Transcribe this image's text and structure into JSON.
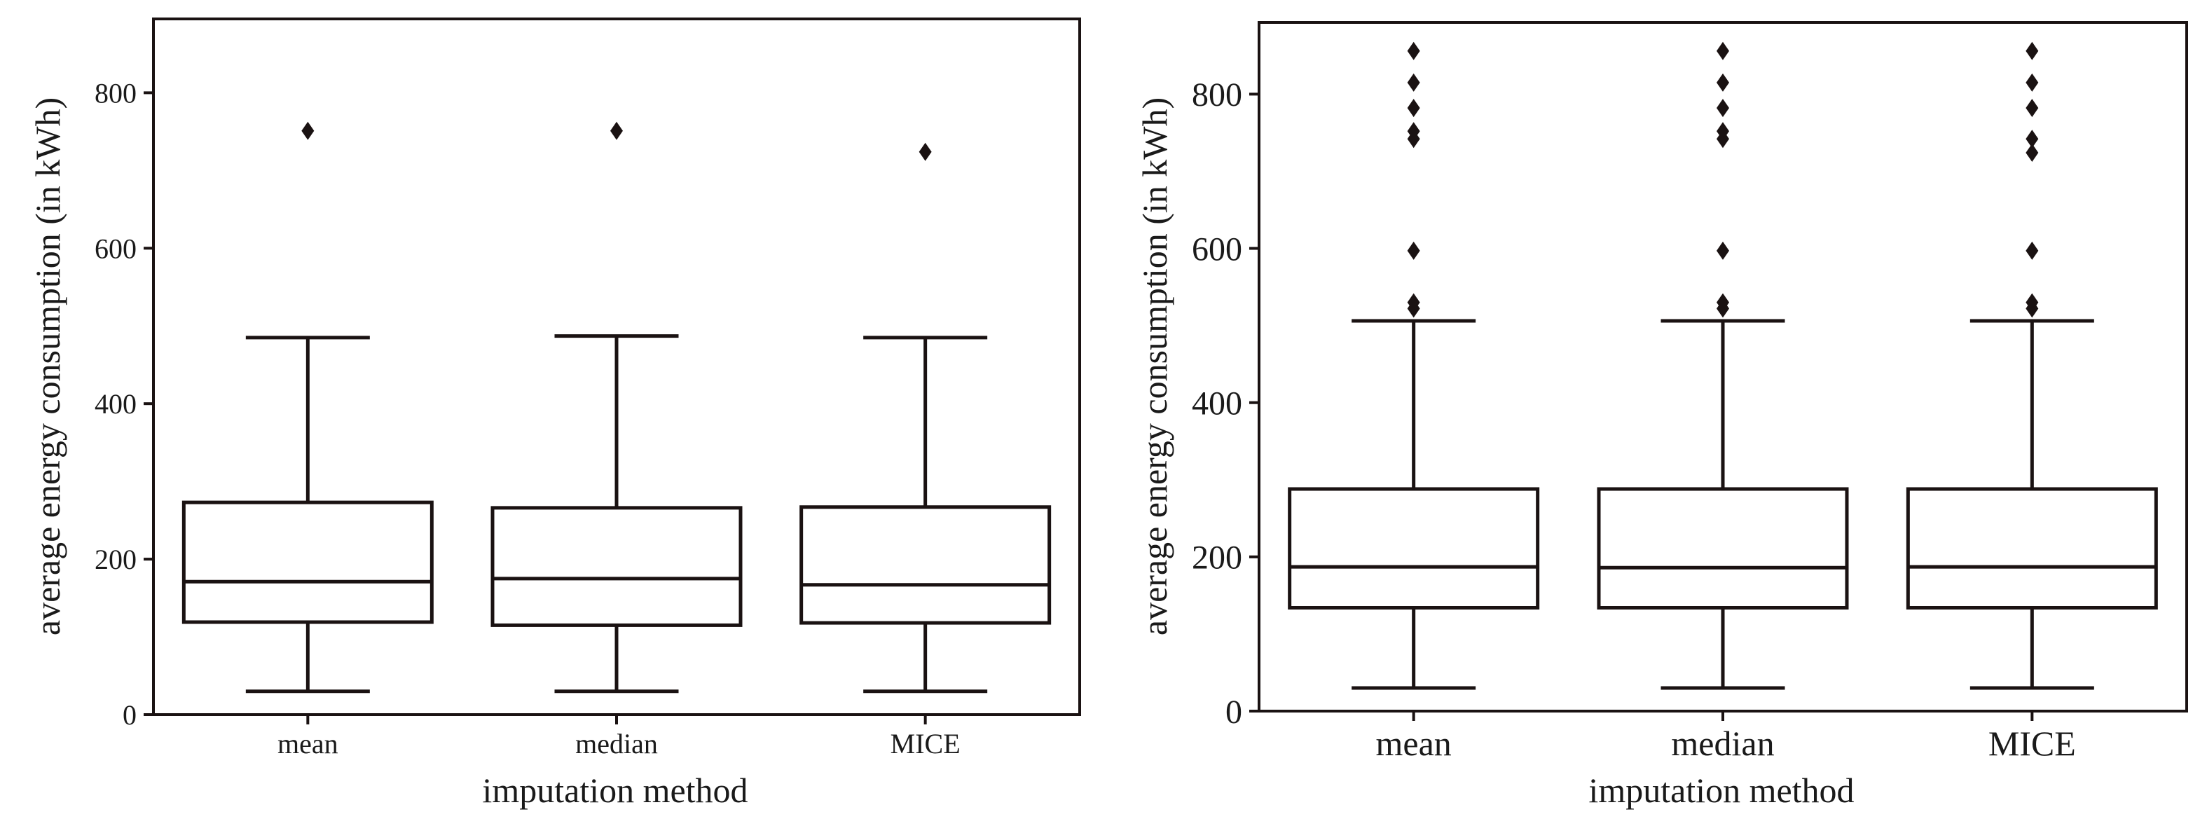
{
  "chart_data": [
    {
      "type": "box",
      "title": "",
      "xlabel": "imputation method",
      "ylabel": "average energy consumption (in kWh)",
      "ylim": [
        0,
        895
      ],
      "yticks": [
        0,
        200,
        400,
        600,
        800
      ],
      "categories": [
        "mean",
        "median",
        "MICE"
      ],
      "boxes": [
        {
          "name": "mean",
          "whisker_low": 30,
          "q1": 119,
          "median": 171,
          "q3": 273,
          "whisker_high": 485,
          "outliers": [
            751
          ]
        },
        {
          "name": "median",
          "whisker_low": 30,
          "q1": 115,
          "median": 175,
          "q3": 266,
          "whisker_high": 487,
          "outliers": [
            751
          ]
        },
        {
          "name": "MICE",
          "whisker_low": 30,
          "q1": 118,
          "median": 167,
          "q3": 267,
          "whisker_high": 485,
          "outliers": [
            724
          ]
        }
      ]
    },
    {
      "type": "box",
      "title": "",
      "xlabel": "imputation method",
      "ylabel": "average energy consumption (in kWh)",
      "ylim": [
        0,
        893
      ],
      "yticks": [
        0,
        200,
        400,
        600,
        800
      ],
      "categories": [
        "mean",
        "median",
        "MICE"
      ],
      "boxes": [
        {
          "name": "mean",
          "whisker_low": 30,
          "q1": 134,
          "median": 187,
          "q3": 288,
          "whisker_high": 506,
          "outliers": [
            522,
            530,
            597,
            742,
            752,
            782,
            815,
            856
          ]
        },
        {
          "name": "median",
          "whisker_low": 30,
          "q1": 134,
          "median": 186,
          "q3": 288,
          "whisker_high": 506,
          "outliers": [
            522,
            530,
            597,
            742,
            752,
            782,
            815,
            856
          ]
        },
        {
          "name": "MICE",
          "whisker_low": 30,
          "q1": 134,
          "median": 187,
          "q3": 288,
          "whisker_high": 506,
          "outliers": [
            522,
            530,
            597,
            724,
            742,
            782,
            815,
            856
          ]
        }
      ]
    }
  ],
  "colors": {
    "ink": "#1a1212",
    "background": "#ffffff"
  }
}
